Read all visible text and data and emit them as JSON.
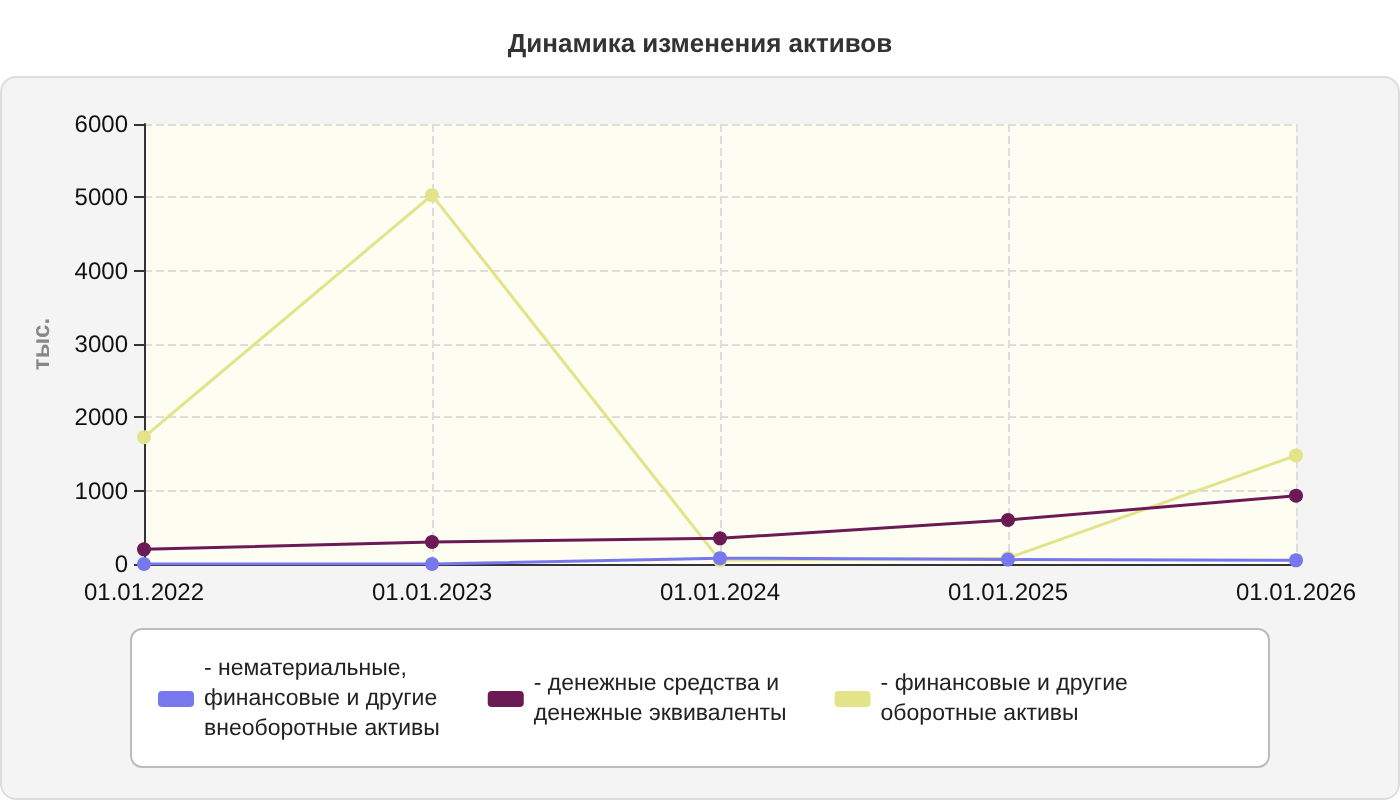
{
  "chart_data": {
    "type": "line",
    "title": "Динамика изменения активов",
    "ylabel": "тыс.",
    "categories": [
      "01.01.2022",
      "01.01.2023",
      "01.01.2024",
      "01.01.2025",
      "01.01.2026"
    ],
    "series": [
      {
        "name": "- нематериальные, финансовые и другие внеоборотные активы",
        "color": "#7777ee",
        "values": [
          0,
          0,
          80,
          60,
          50
        ]
      },
      {
        "name": "- денежные средства и денежные эквиваленты",
        "color": "#6b1a55",
        "values": [
          200,
          300,
          350,
          600,
          930
        ]
      },
      {
        "name": "- финансовые и другие оборотные активы",
        "color": "#e3e38a",
        "values": [
          1730,
          5030,
          50,
          80,
          1480
        ]
      }
    ],
    "ylim": [
      0,
      6000
    ],
    "yticks": [
      0,
      1000,
      2000,
      3000,
      4000,
      5000,
      6000
    ],
    "grid": true,
    "legend": "bottom",
    "marker": "circle",
    "line_style": "solid"
  }
}
